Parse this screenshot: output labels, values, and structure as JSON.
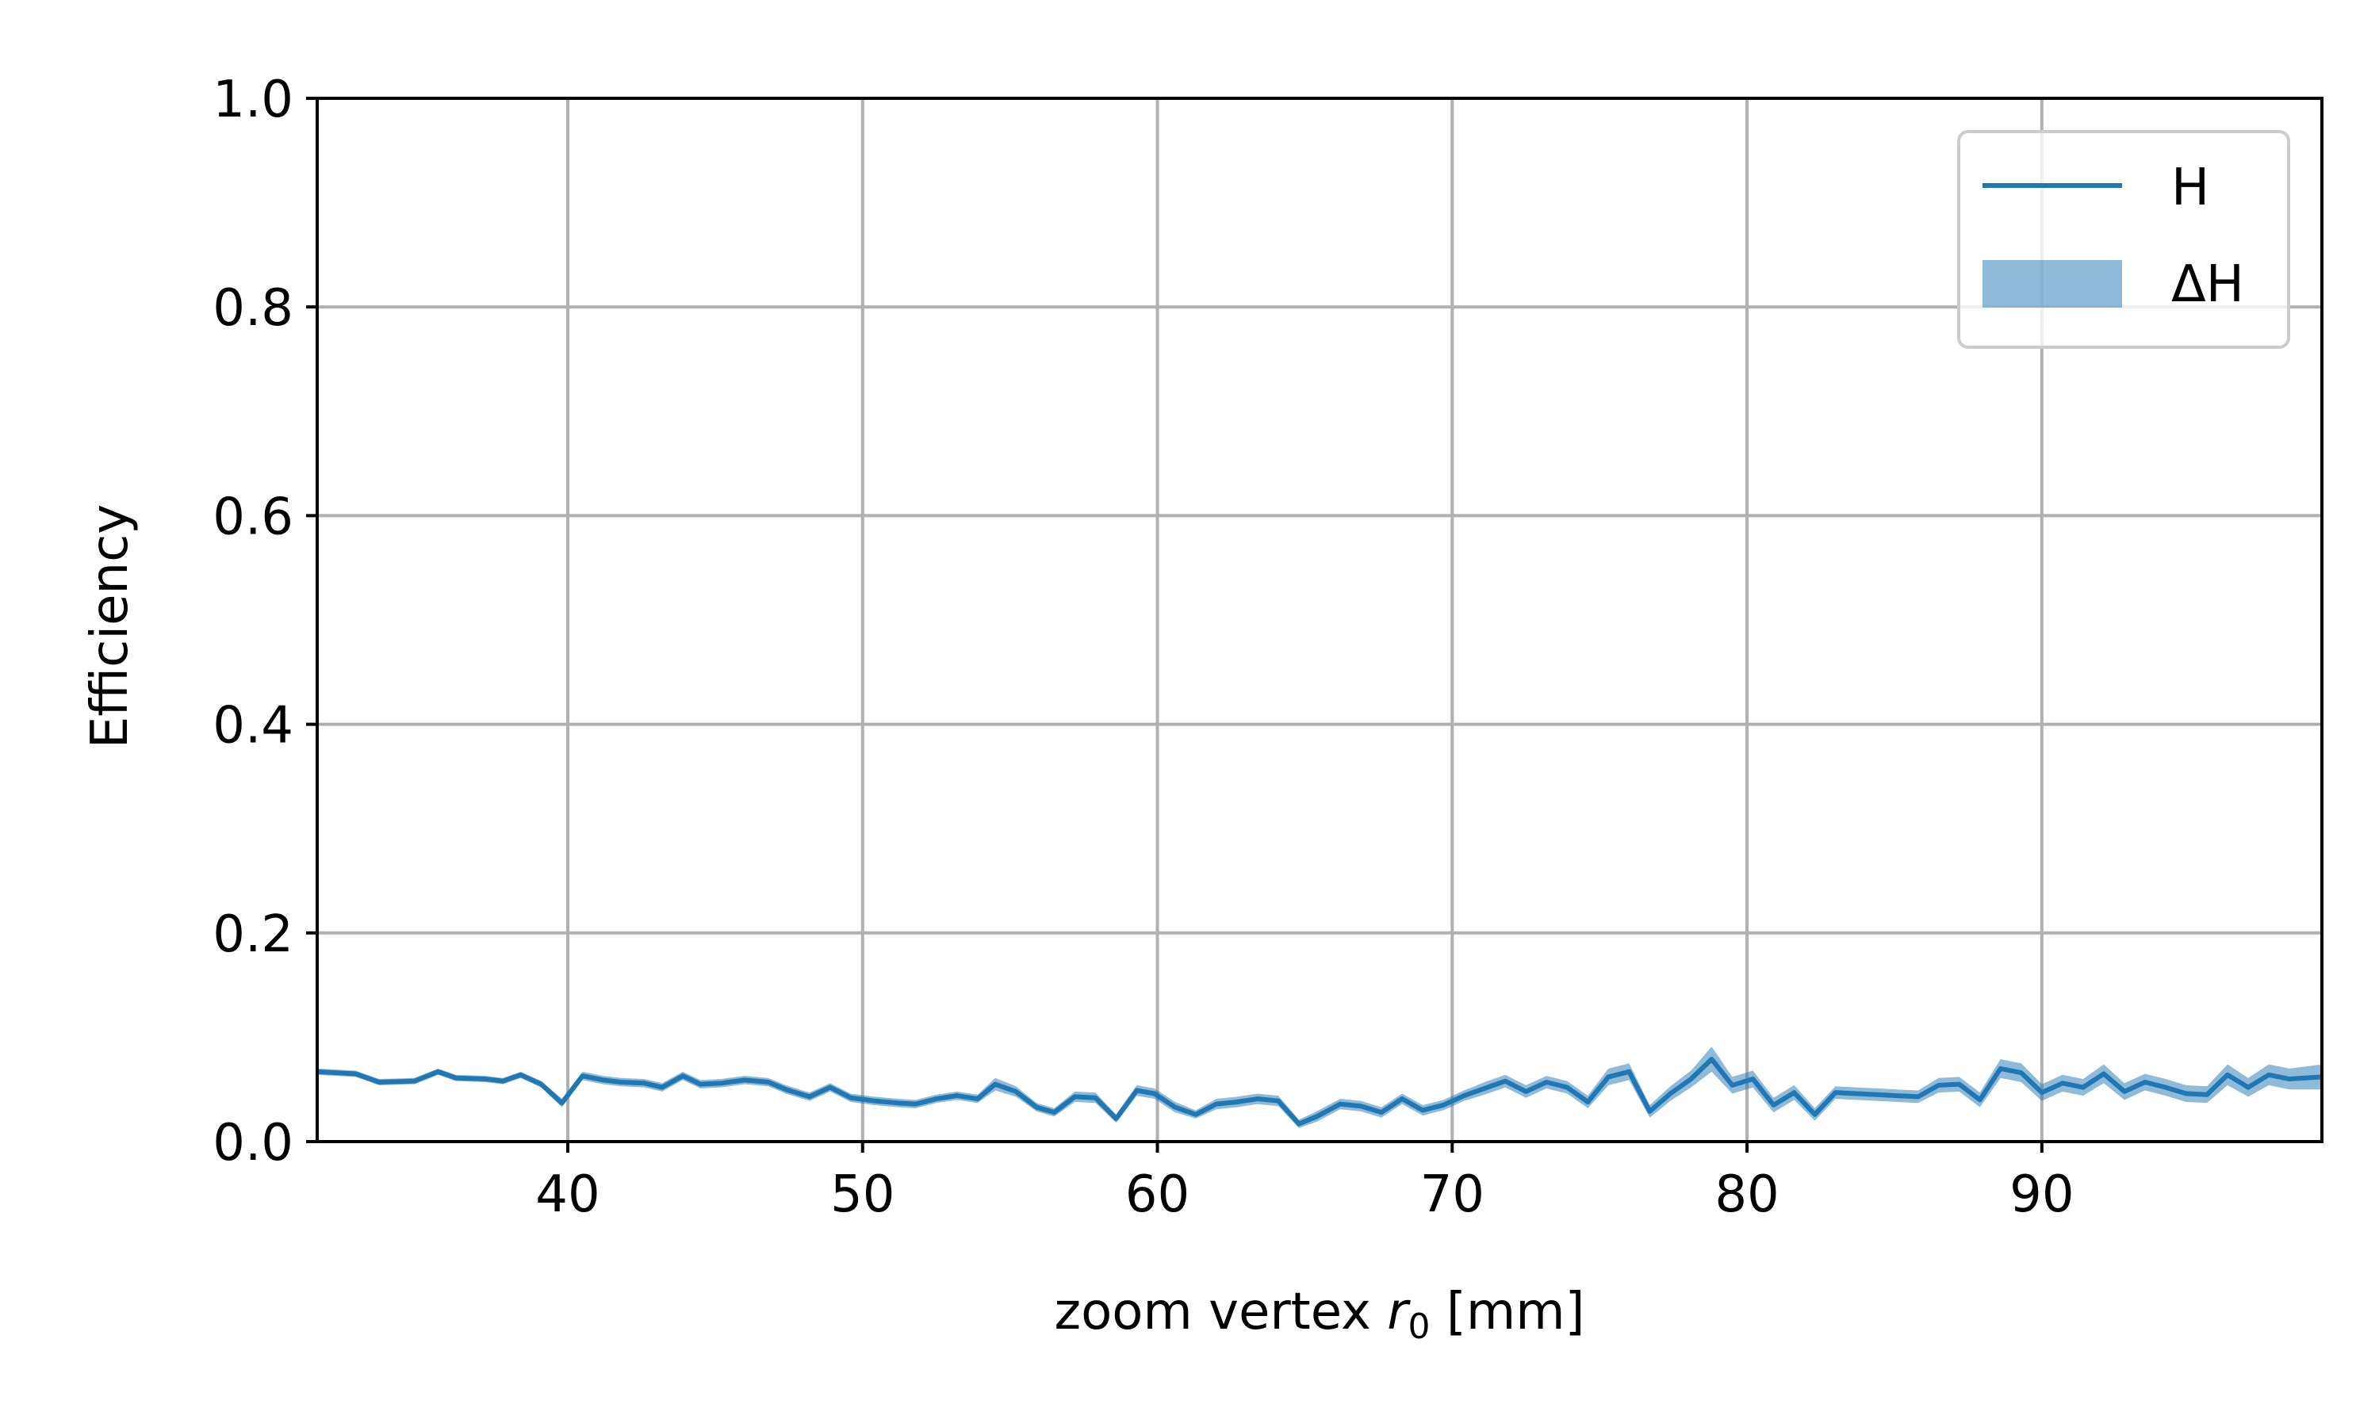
{
  "chart_data": {
    "type": "line",
    "title": "",
    "xlabel_prefix": "zoom vertex ",
    "xlabel_var": "r",
    "xlabel_sub": "0",
    "xlabel_suffix": " [mm]",
    "ylabel": "Efficiency",
    "xlim": [
      31.5,
      99.5
    ],
    "ylim": [
      0.0,
      1.0
    ],
    "xticks": [
      40,
      50,
      60,
      70,
      80,
      90
    ],
    "yticks": [
      0.0,
      0.2,
      0.4,
      0.6,
      0.8,
      1.0
    ],
    "xtick_labels": [
      "40",
      "50",
      "60",
      "70",
      "80",
      "90"
    ],
    "ytick_labels": [
      "0.0",
      "0.2",
      "0.4",
      "0.6",
      "0.8",
      "1.0"
    ],
    "grid": true,
    "legend_position": "top-right",
    "series": [
      {
        "name": "H",
        "band_name": "ΔH",
        "color": "#1f77b4",
        "band_color": "#1f77b4",
        "x": [
          31.5,
          32.8,
          33.6,
          34.8,
          35.6,
          36.2,
          37.2,
          37.8,
          38.4,
          39.1,
          39.8,
          40.5,
          41.2,
          41.8,
          42.6,
          43.2,
          43.9,
          44.5,
          45.2,
          46.0,
          46.8,
          47.4,
          48.2,
          48.9,
          49.6,
          50.4,
          51.2,
          51.8,
          52.5,
          53.2,
          53.9,
          54.5,
          55.2,
          55.9,
          56.5,
          57.2,
          57.9,
          58.6,
          59.3,
          59.9,
          60.6,
          61.3,
          62.0,
          62.7,
          63.4,
          64.1,
          64.8,
          65.4,
          66.2,
          66.9,
          67.6,
          68.3,
          69.0,
          69.7,
          70.4,
          71.1,
          71.8,
          72.5,
          73.2,
          73.9,
          74.6,
          75.3,
          76.0,
          76.7,
          77.4,
          78.1,
          78.8,
          79.5,
          80.2,
          80.9,
          81.6,
          82.3,
          83.0,
          83.7,
          84.4,
          85.1,
          85.8,
          86.5,
          87.2,
          87.9,
          88.6,
          89.3,
          90.0,
          90.7,
          91.4,
          92.1,
          92.8,
          93.5,
          94.2,
          94.9,
          95.6,
          96.3,
          97.0,
          97.7,
          98.4,
          99.5
        ],
        "y": [
          0.067,
          0.065,
          0.057,
          0.058,
          0.067,
          0.061,
          0.06,
          0.058,
          0.064,
          0.055,
          0.037,
          0.063,
          0.059,
          0.057,
          0.056,
          0.052,
          0.063,
          0.055,
          0.056,
          0.059,
          0.057,
          0.05,
          0.043,
          0.052,
          0.042,
          0.039,
          0.037,
          0.036,
          0.041,
          0.044,
          0.041,
          0.055,
          0.048,
          0.033,
          0.028,
          0.043,
          0.042,
          0.022,
          0.049,
          0.046,
          0.033,
          0.026,
          0.036,
          0.038,
          0.041,
          0.039,
          0.017,
          0.024,
          0.036,
          0.034,
          0.028,
          0.041,
          0.03,
          0.035,
          0.044,
          0.051,
          0.058,
          0.048,
          0.057,
          0.052,
          0.038,
          0.062,
          0.067,
          0.029,
          0.046,
          0.06,
          0.079,
          0.054,
          0.06,
          0.035,
          0.047,
          0.026,
          0.047,
          0.046,
          0.045,
          0.044,
          0.043,
          0.054,
          0.055,
          0.04,
          0.07,
          0.066,
          0.047,
          0.056,
          0.052,
          0.065,
          0.048,
          0.057,
          0.052,
          0.046,
          0.045,
          0.064,
          0.052,
          0.064,
          0.06,
          0.062
        ],
        "err": [
          0.003,
          0.003,
          0.003,
          0.003,
          0.003,
          0.003,
          0.003,
          0.003,
          0.003,
          0.003,
          0.004,
          0.004,
          0.004,
          0.004,
          0.004,
          0.004,
          0.004,
          0.004,
          0.004,
          0.004,
          0.004,
          0.004,
          0.004,
          0.004,
          0.004,
          0.004,
          0.004,
          0.004,
          0.004,
          0.004,
          0.004,
          0.006,
          0.005,
          0.004,
          0.004,
          0.005,
          0.005,
          0.004,
          0.005,
          0.005,
          0.005,
          0.004,
          0.005,
          0.005,
          0.005,
          0.005,
          0.004,
          0.005,
          0.005,
          0.005,
          0.005,
          0.005,
          0.005,
          0.005,
          0.005,
          0.006,
          0.006,
          0.006,
          0.006,
          0.006,
          0.006,
          0.008,
          0.008,
          0.006,
          0.007,
          0.008,
          0.012,
          0.008,
          0.008,
          0.007,
          0.007,
          0.006,
          0.006,
          0.006,
          0.006,
          0.006,
          0.006,
          0.007,
          0.007,
          0.007,
          0.009,
          0.009,
          0.008,
          0.008,
          0.008,
          0.009,
          0.008,
          0.008,
          0.008,
          0.008,
          0.008,
          0.01,
          0.009,
          0.01,
          0.01,
          0.012
        ]
      }
    ]
  }
}
